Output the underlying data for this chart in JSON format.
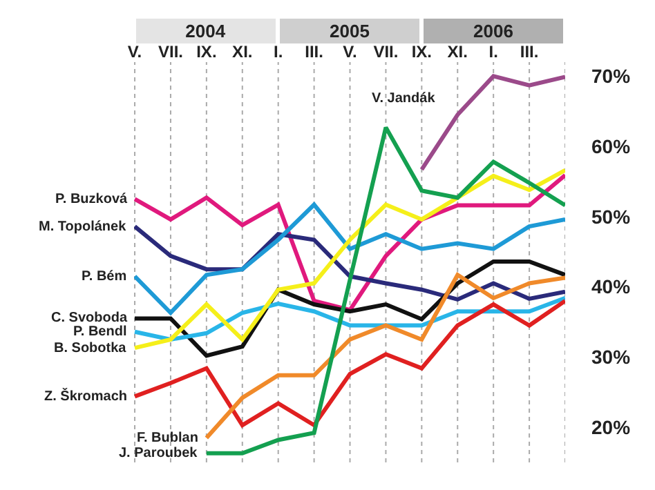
{
  "chart_data": {
    "type": "line",
    "categories": [
      "V.",
      "VII.",
      "IX.",
      "XI.",
      "I.",
      "III.",
      "V.",
      "VII.",
      "IX.",
      "XI.",
      "I.",
      "III.",
      null
    ],
    "ylim": [
      15,
      72
    ],
    "yticks": [
      {
        "value": 20,
        "label": "20%"
      },
      {
        "value": 30,
        "label": "30%"
      },
      {
        "value": 40,
        "label": "40%"
      },
      {
        "value": 50,
        "label": "50%"
      },
      {
        "value": 60,
        "label": "60%"
      },
      {
        "value": 70,
        "label": "70%"
      }
    ],
    "grid": "x",
    "legend": false,
    "marker": "none",
    "line_style": "solid",
    "annotations": [
      "2004",
      "2005",
      "2006"
    ],
    "series": [
      {
        "name": "P. Buzková",
        "color": "#e0197d",
        "values": [
          52.5,
          49.6,
          52.7,
          48.8,
          51.7,
          38.0,
          36.7,
          44.4,
          49.6,
          51.6,
          51.6,
          51.6,
          55.9
        ]
      },
      {
        "name": "M. Topolánek",
        "color": "#2a2a7a",
        "values": [
          48.6,
          44.4,
          42.5,
          42.5,
          47.5,
          46.7,
          41.5,
          40.5,
          39.6,
          38.2,
          40.5,
          38.3,
          39.3
        ]
      },
      {
        "name": "P. Bém",
        "color": "#1e9ad6",
        "values": [
          41.5,
          36.3,
          41.7,
          42.5,
          46.7,
          51.7,
          45.4,
          47.5,
          45.4,
          46.2,
          45.4,
          48.6,
          49.6
        ]
      },
      {
        "name": "C. Svoboda",
        "color": "#111111",
        "values": [
          35.5,
          35.5,
          30.2,
          31.5,
          39.6,
          37.5,
          36.5,
          37.5,
          35.4,
          40.5,
          43.6,
          43.6,
          41.7
        ]
      },
      {
        "name": "P. Bendl",
        "color": "#29b5e8",
        "values": [
          33.6,
          32.5,
          33.4,
          36.3,
          37.6,
          36.5,
          34.5,
          34.5,
          34.5,
          36.5,
          36.5,
          36.5,
          38.4
        ]
      },
      {
        "name": "B. Sobotka",
        "color": "#f5ef1a",
        "values": [
          31.3,
          32.5,
          37.5,
          32.5,
          39.6,
          40.5,
          46.7,
          51.7,
          49.6,
          52.7,
          55.8,
          53.8,
          56.6
        ]
      },
      {
        "name": "Z. Škromach",
        "color": "#e02020",
        "values": [
          24.4,
          26.3,
          28.4,
          20.3,
          23.4,
          20.3,
          27.6,
          30.4,
          28.4,
          34.5,
          37.5,
          34.5,
          38.0
        ]
      },
      {
        "name": "F. Bublan",
        "color": "#f08a2a",
        "values": [
          null,
          null,
          18.5,
          24.2,
          27.4,
          27.4,
          32.5,
          34.5,
          32.5,
          41.7,
          38.4,
          40.5,
          41.3
        ]
      },
      {
        "name": "J. Paroubek",
        "color": "#14a050",
        "values": [
          null,
          null,
          16.3,
          16.3,
          18.2,
          19.2,
          41.0,
          62.7,
          53.7,
          52.7,
          57.8,
          54.8,
          51.6
        ]
      },
      {
        "name": "V. Jandák",
        "color": "#9b4a8a",
        "values": [
          null,
          null,
          null,
          null,
          null,
          null,
          null,
          null,
          56.7,
          64.5,
          70.0,
          68.7,
          69.9
        ]
      }
    ]
  }
}
